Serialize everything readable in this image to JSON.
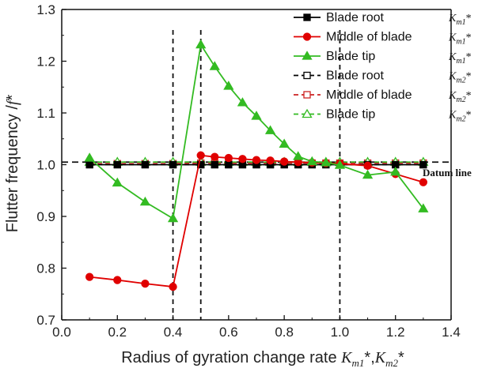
{
  "chart_data": {
    "type": "line",
    "title": "",
    "xlabel": "Radius of gyration change rate K",
    "xlabel_parts": [
      "Radius of gyration change rate ",
      "K",
      "m1",
      "*,",
      "K",
      "m2",
      "*"
    ],
    "ylabel": "Flutter frequency /f*",
    "ylabel_parts": [
      "Flutter frequency /",
      "f",
      "*"
    ],
    "xlim": [
      0.0,
      1.4
    ],
    "ylim": [
      0.7,
      1.3
    ],
    "xticks": [
      "0.0",
      "0.2",
      "0.4",
      "0.6",
      "0.8",
      "1.0",
      "1.2",
      "1.4"
    ],
    "yticks": [
      "0.7",
      "0.8",
      "0.9",
      "1.0",
      "1.1",
      "1.2",
      "1.3"
    ],
    "vlines": [
      0.4,
      0.5,
      1.0
    ],
    "datum_line": {
      "label": "Datum line",
      "y": 1.005
    },
    "series": [
      {
        "name": "Blade root",
        "symbol_main": "K",
        "symbol_sub": "m1",
        "symbol_tail": "*",
        "color": "#000000",
        "dash": false,
        "marker": "square",
        "filled": true,
        "x": [
          0.1,
          0.2,
          0.3,
          0.4,
          0.5,
          0.55,
          0.6,
          0.65,
          0.7,
          0.75,
          0.8,
          0.85,
          0.9,
          0.95,
          1.0,
          1.1,
          1.2,
          1.3
        ],
        "values": [
          1.0,
          1.0,
          1.0,
          1.0,
          1.0,
          1.0,
          1.0,
          1.0,
          1.0,
          1.0,
          1.0,
          1.0,
          1.0,
          1.0,
          1.0,
          1.0,
          1.0,
          1.0
        ]
      },
      {
        "name": "Middle of blade",
        "symbol_main": "K",
        "symbol_sub": "m1",
        "symbol_tail": "*",
        "color": "#e00000",
        "dash": false,
        "marker": "circle",
        "filled": true,
        "x": [
          0.1,
          0.2,
          0.3,
          0.4,
          0.5,
          0.55,
          0.6,
          0.65,
          0.7,
          0.75,
          0.8,
          0.85,
          0.9,
          0.95,
          1.0,
          1.1,
          1.2,
          1.3
        ],
        "values": [
          0.783,
          0.777,
          0.77,
          0.764,
          1.018,
          1.015,
          1.013,
          1.011,
          1.009,
          1.008,
          1.006,
          1.005,
          1.004,
          1.003,
          1.002,
          0.998,
          0.982,
          0.966
        ]
      },
      {
        "name": "Blade tip",
        "symbol_main": "K",
        "symbol_sub": "m1",
        "symbol_tail": "*",
        "color": "#33bb22",
        "dash": false,
        "marker": "triangle",
        "filled": true,
        "x": [
          0.1,
          0.2,
          0.3,
          0.4,
          0.5,
          0.55,
          0.6,
          0.65,
          0.7,
          0.75,
          0.8,
          0.85,
          0.9,
          0.95,
          1.0,
          1.1,
          1.2,
          1.3
        ],
        "values": [
          1.013,
          0.965,
          0.928,
          0.896,
          1.232,
          1.19,
          1.152,
          1.12,
          1.094,
          1.066,
          1.04,
          1.016,
          1.006,
          1.004,
          0.999,
          0.98,
          0.986,
          0.915
        ]
      },
      {
        "name": "Blade root",
        "symbol_main": "K",
        "symbol_sub": "m2",
        "symbol_tail": "*",
        "color": "#000000",
        "dash": true,
        "marker": "square",
        "filled": false,
        "x": [
          0.1,
          0.2,
          0.3,
          0.4,
          0.5,
          0.55,
          0.6,
          0.65,
          0.7,
          0.75,
          0.8,
          0.85,
          0.9,
          0.95,
          1.0,
          1.1,
          1.2,
          1.3
        ],
        "values": [
          1.0,
          1.0,
          1.0,
          1.0,
          1.0,
          1.0,
          1.0,
          1.0,
          1.0,
          1.0,
          1.0,
          1.0,
          1.0,
          1.0,
          1.0,
          1.0,
          1.0,
          1.0
        ]
      },
      {
        "name": "Middle of blade",
        "symbol_main": "K",
        "symbol_sub": "m2",
        "symbol_tail": "*",
        "color": "#cc2222",
        "dash": true,
        "marker": "square",
        "filled": false,
        "x": [
          0.1,
          0.2,
          0.3,
          0.4,
          0.5,
          0.55,
          0.6,
          0.65,
          0.7,
          0.75,
          0.8,
          0.85,
          0.9,
          0.95,
          1.0,
          1.1,
          1.2,
          1.3
        ],
        "values": [
          1.002,
          1.002,
          1.002,
          1.002,
          1.003,
          1.003,
          1.003,
          1.003,
          1.003,
          1.003,
          1.003,
          1.003,
          1.003,
          1.003,
          1.003,
          1.003,
          1.003,
          1.003
        ]
      },
      {
        "name": "Blade tip",
        "symbol_main": "K",
        "symbol_sub": "m2",
        "symbol_tail": "*",
        "color": "#33bb22",
        "dash": true,
        "marker": "triangle",
        "filled": false,
        "x": [
          0.1,
          0.2,
          0.3,
          0.4,
          0.5,
          0.55,
          0.6,
          0.65,
          0.7,
          0.75,
          0.8,
          0.85,
          0.9,
          0.95,
          1.0,
          1.1,
          1.2,
          1.3
        ],
        "values": [
          1.005,
          1.005,
          1.005,
          1.005,
          1.005,
          1.005,
          1.005,
          1.005,
          1.005,
          1.005,
          1.005,
          1.005,
          1.005,
          1.005,
          1.005,
          1.005,
          1.005,
          1.005
        ]
      }
    ]
  }
}
